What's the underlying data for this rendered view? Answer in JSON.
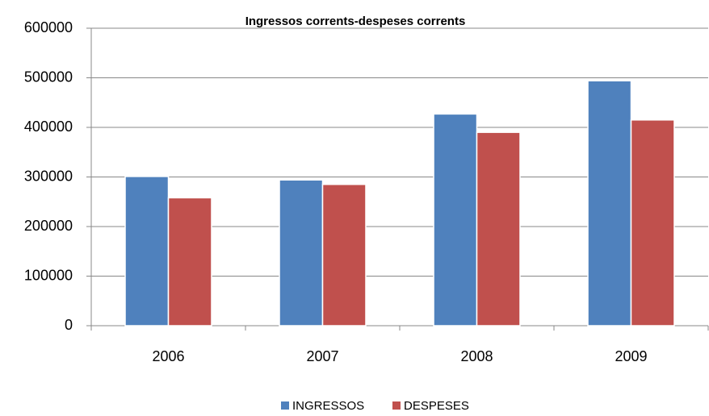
{
  "chart_data": {
    "type": "bar",
    "title": "Ingressos corrents-despeses corrents",
    "categories": [
      "2006",
      "2007",
      "2008",
      "2009"
    ],
    "series": [
      {
        "name": "INGRESSOS",
        "color": "#4f81bd",
        "values": [
          301000,
          294000,
          427000,
          494000
        ]
      },
      {
        "name": "DESPESES",
        "color": "#c0504d",
        "values": [
          258000,
          285000,
          390000,
          415000
        ]
      }
    ],
    "ylim": [
      0,
      600000
    ],
    "yticks": [
      0,
      100000,
      200000,
      300000,
      400000,
      500000,
      600000
    ],
    "grid": true,
    "legend": "bottom"
  }
}
